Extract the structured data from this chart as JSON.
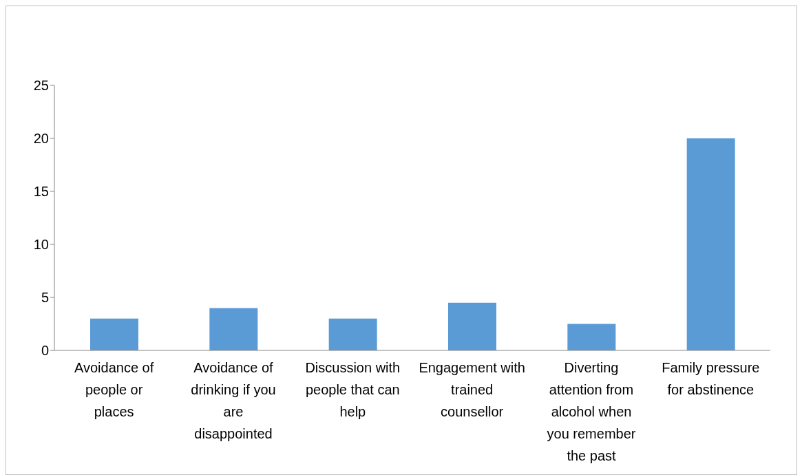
{
  "chart_data": {
    "type": "bar",
    "categories": [
      "Avoidance of people or places",
      "Avoidance of drinking if you are disappointed",
      "Discussion with people that can help",
      "Engagement with trained counsellor",
      "Diverting attention from alcohol when you remember the past",
      "Family pressure for abstinence"
    ],
    "values": [
      3,
      4,
      3,
      4.5,
      2.5,
      20
    ],
    "color": "#5b9bd5",
    "ylim": [
      0,
      25
    ],
    "yticks": [
      0,
      5,
      10,
      15,
      20,
      25
    ],
    "grid": false,
    "legend": false
  }
}
